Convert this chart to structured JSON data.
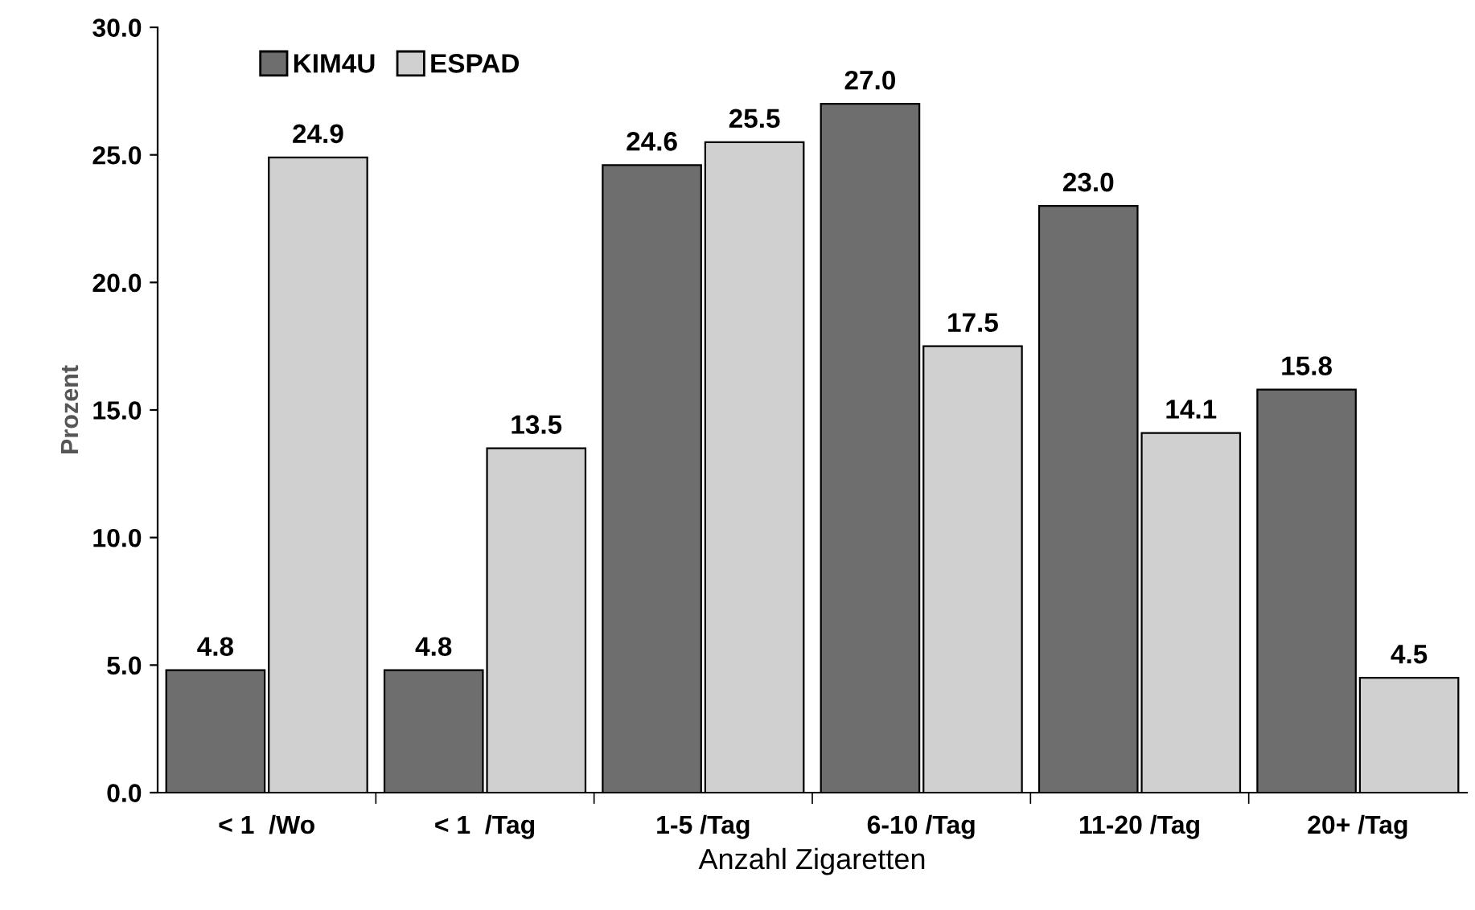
{
  "chart_data": {
    "type": "bar",
    "xlabel": "Anzahl Zigaretten",
    "ylabel": "Prozent",
    "categories": [
      "< 1  /Wo",
      "< 1  /Tag",
      "1-5 /Tag",
      "6-10 /Tag",
      "11-20 /Tag",
      "20+ /Tag"
    ],
    "series": [
      {
        "name": "KIM4U",
        "color": "#6e6e6e",
        "values": [
          4.8,
          4.8,
          24.6,
          27.0,
          23.0,
          15.8
        ],
        "value_labels": [
          "4.8",
          "4.8",
          "24.6",
          "27.0",
          "23.0",
          "15.8"
        ]
      },
      {
        "name": "ESPAD",
        "color": "#d0d0d0",
        "values": [
          24.9,
          13.5,
          25.5,
          17.5,
          14.1,
          4.5
        ],
        "value_labels": [
          "24.9",
          "13.5",
          "25.5",
          "17.5",
          "14.1",
          "4.5"
        ]
      }
    ],
    "ylim": [
      0,
      30
    ],
    "yticks": [
      {
        "value": 0,
        "label": "0.0"
      },
      {
        "value": 5,
        "label": "5.0"
      },
      {
        "value": 10,
        "label": "10.0"
      },
      {
        "value": 15,
        "label": "15.0"
      },
      {
        "value": 20,
        "label": "20.0"
      },
      {
        "value": 25,
        "label": "25.0"
      },
      {
        "value": 30,
        "label": "30.0"
      }
    ],
    "legend": "top left",
    "grid": false
  }
}
